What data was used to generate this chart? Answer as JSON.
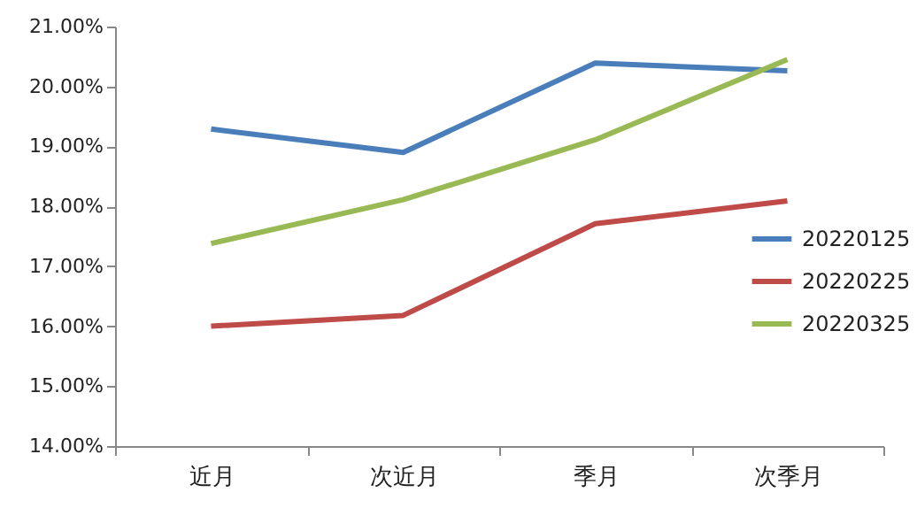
{
  "chart_data": {
    "type": "line",
    "categories": [
      "近月",
      "次近月",
      "季月",
      "次季月"
    ],
    "series": [
      {
        "name": "20220125",
        "color": "#4a7ebb",
        "values": [
          19.29,
          18.9,
          20.39,
          20.26
        ]
      },
      {
        "name": "20220225",
        "color": "#be4b48",
        "values": [
          16.0,
          16.18,
          17.71,
          18.09
        ]
      },
      {
        "name": "20220325",
        "color": "#98b954",
        "values": [
          17.38,
          18.11,
          19.11,
          20.45
        ]
      }
    ],
    "ylim": [
      14,
      21
    ],
    "yticks": [
      {
        "value": 14,
        "label": "14.00%"
      },
      {
        "value": 15,
        "label": "15.00%"
      },
      {
        "value": 16,
        "label": "16.00%"
      },
      {
        "value": 17,
        "label": "17.00%"
      },
      {
        "value": 18,
        "label": "18.00%"
      },
      {
        "value": 19,
        "label": "19.00%"
      },
      {
        "value": 20,
        "label": "20.00%"
      },
      {
        "value": 21,
        "label": "21.00%"
      }
    ],
    "legend": "right"
  }
}
